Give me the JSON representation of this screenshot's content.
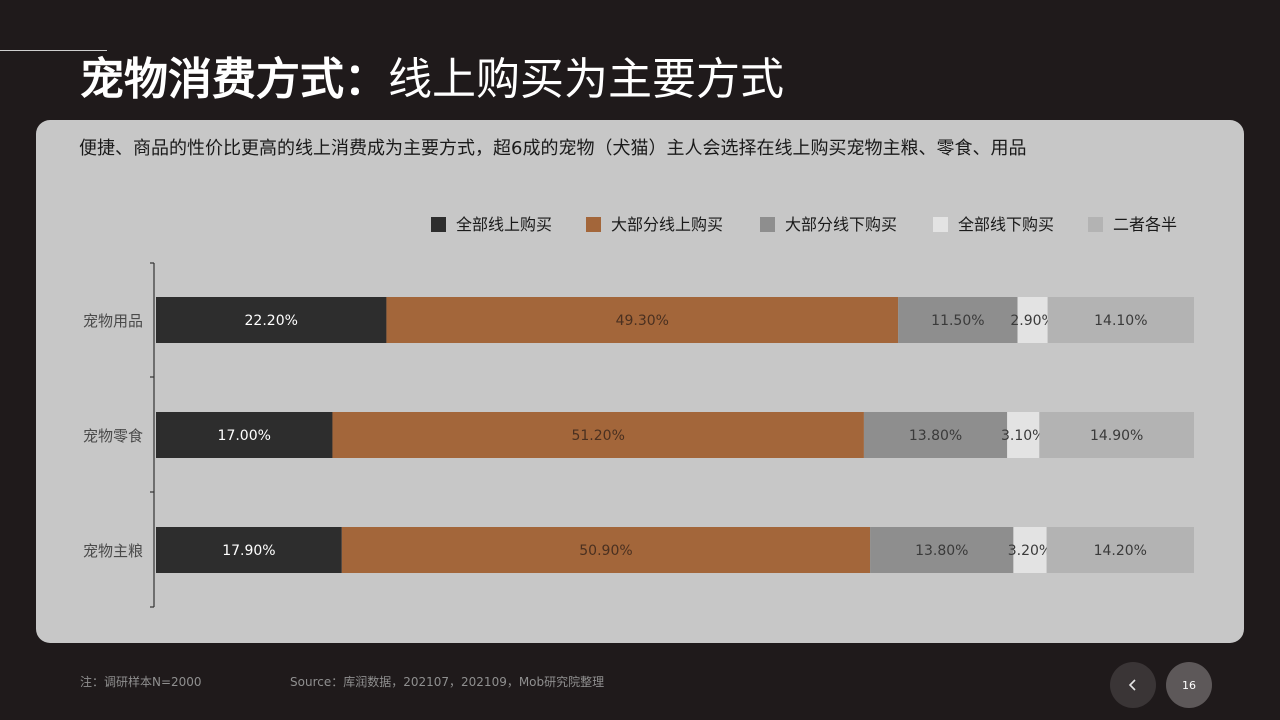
{
  "header": {
    "title_bold": "宠物消费方式：",
    "title_light": "线上购买为主要方式"
  },
  "panel": {
    "subtitle": "便捷、商品的性价比更高的线上消费成为主要方式，超6成的宠物（犬猫）主人会选择在线上购买宠物主粮、零食、用品"
  },
  "chart_data": {
    "type": "bar",
    "orientation": "horizontal",
    "stacked": true,
    "percent_stacked": true,
    "categories": [
      "宠物用品",
      "宠物零食",
      "宠物主粮"
    ],
    "series": [
      {
        "name": "全部线上购买",
        "color": "#2d2d2d",
        "label_color": "#ffffff",
        "values": [
          22.2,
          17.0,
          17.9
        ],
        "labels": [
          "22.20%",
          "17.00%",
          "17.90%"
        ]
      },
      {
        "name": "大部分线上购买",
        "color": "#a3663a",
        "label_color": "#4a3020",
        "values": [
          49.3,
          51.2,
          50.9
        ],
        "labels": [
          "49.30%",
          "51.20%",
          "50.90%"
        ]
      },
      {
        "name": "大部分线下购买",
        "color": "#8e8e8e",
        "label_color": "#3a3a3a",
        "values": [
          11.5,
          13.8,
          13.8
        ],
        "labels": [
          "11.50%",
          "13.80%",
          "13.80%"
        ]
      },
      {
        "name": "全部线下购买",
        "color": "#e3e3e3",
        "label_color": "#3a3a3a",
        "values": [
          2.9,
          3.1,
          3.2
        ],
        "labels": [
          "2.90%",
          "3.10%",
          "3.20%"
        ]
      },
      {
        "name": "二者各半",
        "color": "#b3b3b3",
        "label_color": "#3a3a3a",
        "values": [
          14.1,
          14.9,
          14.2
        ],
        "labels": [
          "14.10%",
          "14.90%",
          "14.20%"
        ]
      }
    ],
    "xlim": [
      0,
      100
    ],
    "legend_position": "top-right",
    "grid": false
  },
  "footer": {
    "note": "注：调研样本N=2000",
    "source": "Source：库润数据，202107，202109，Mob研究院整理",
    "page_number": "16",
    "prev_icon": "chevron-left-icon"
  }
}
